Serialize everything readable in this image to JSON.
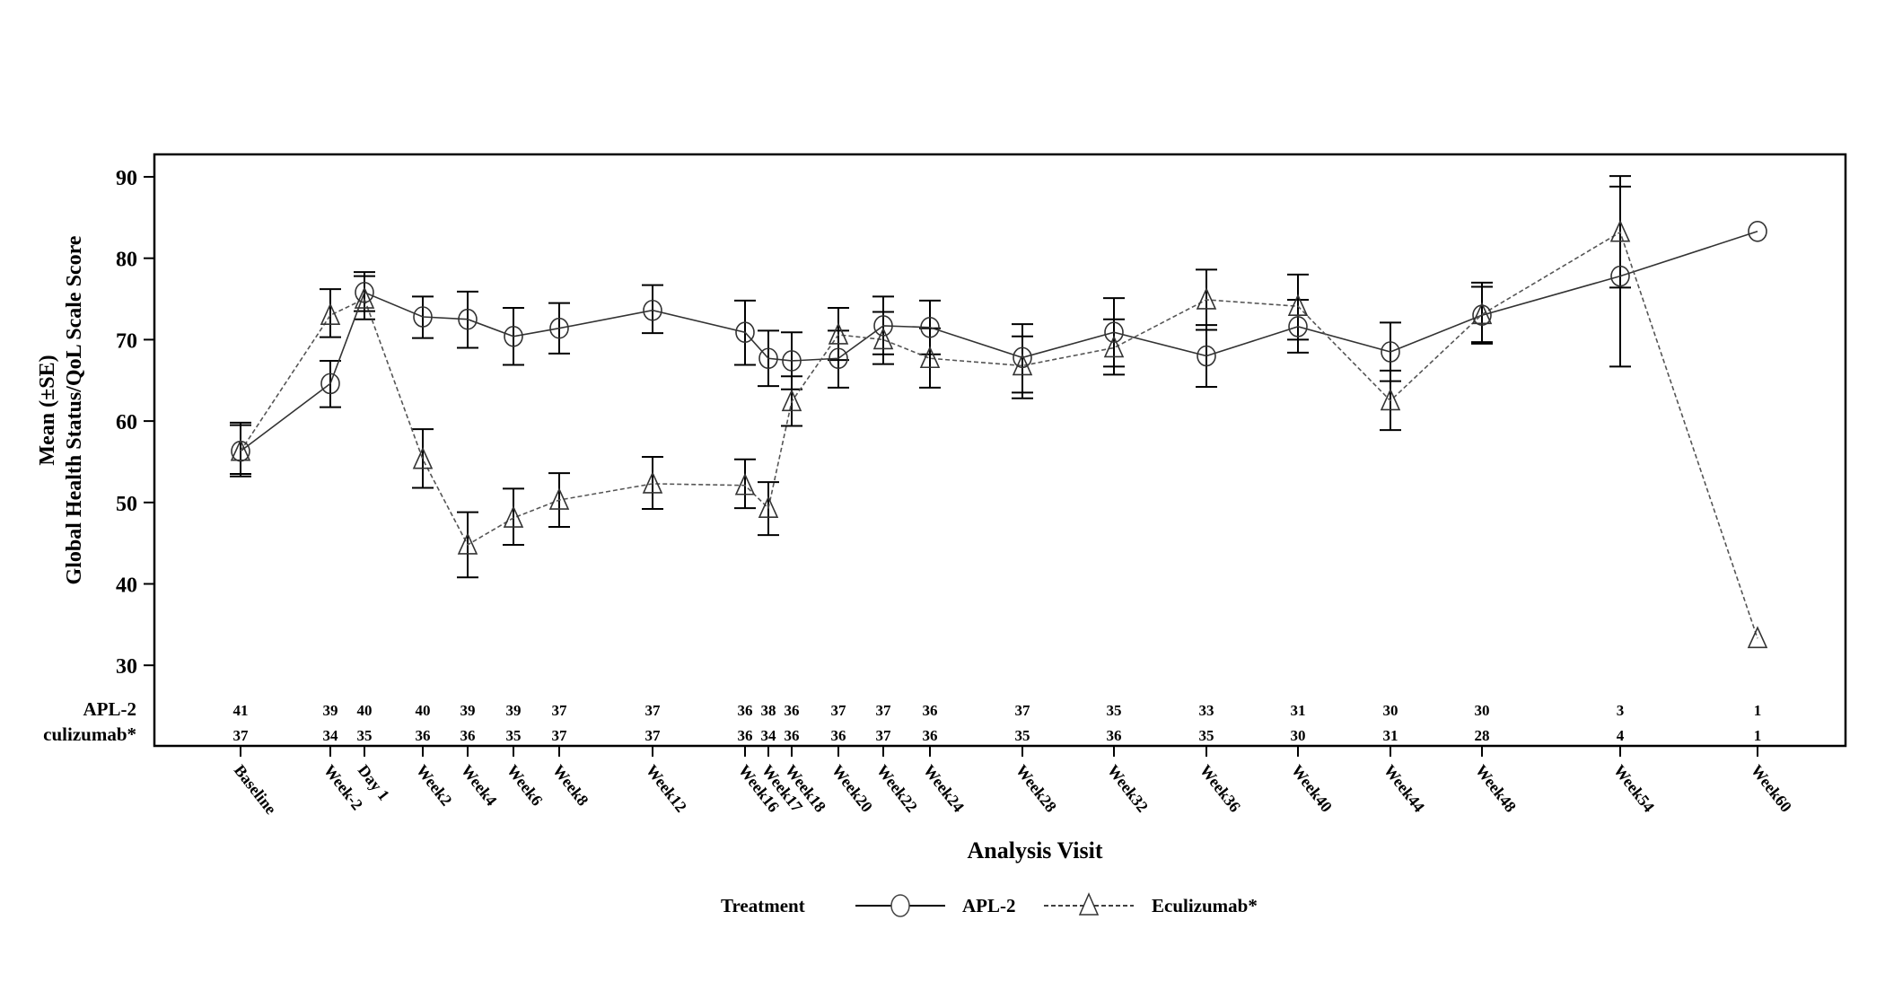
{
  "chart_data": {
    "type": "line",
    "title": "",
    "xlabel": "Analysis Visit",
    "ylabel_line1": "Mean (±SE)",
    "ylabel_line2": "Global Health Status/QoL Scale Score",
    "ylim": [
      30,
      90
    ],
    "yticks": [
      30,
      40,
      50,
      60,
      70,
      80,
      90
    ],
    "grid": false,
    "legend": {
      "title": "Treatment",
      "position": "bottom",
      "entries": [
        {
          "name": "APL-2",
          "marker": "circle",
          "line": "solid"
        },
        {
          "name": "Eculizumab*",
          "marker": "triangle",
          "line": "dashed"
        }
      ]
    },
    "categories": [
      "Baseline",
      "Week-2",
      "Day 1",
      "Week2",
      "Week4",
      "Week6",
      "Week8",
      "Week12",
      "Week16",
      "Week17",
      "Week18",
      "Week20",
      "Week22",
      "Week24",
      "Week28",
      "Week32",
      "Week36",
      "Week40",
      "Week44",
      "Week48",
      "Week54",
      "Week60"
    ],
    "x_positions": [
      -4,
      -2,
      -0.3,
      2,
      4,
      6,
      8,
      12,
      16,
      17,
      18,
      20,
      22,
      24,
      28,
      32,
      36,
      40,
      44,
      48,
      54,
      60
    ],
    "series": [
      {
        "name": "APL-2",
        "values": [
          56.3,
          64.6,
          75.8,
          72.8,
          72.5,
          70.4,
          71.4,
          73.6,
          70.9,
          67.7,
          67.4,
          67.7,
          71.7,
          71.5,
          67.8,
          70.9,
          68.0,
          71.6,
          68.5,
          73.0,
          77.8,
          83.3
        ],
        "se_upper": [
          59.8,
          67.4,
          78.3,
          75.3,
          75.9,
          73.9,
          74.5,
          76.7,
          74.8,
          71.1,
          70.9,
          71.1,
          75.3,
          74.8,
          71.9,
          75.1,
          71.8,
          74.9,
          72.1,
          77.0,
          88.8,
          null
        ],
        "se_lower": [
          53.2,
          61.7,
          73.5,
          70.2,
          69.0,
          66.9,
          68.3,
          70.8,
          66.9,
          64.3,
          63.9,
          64.1,
          68.2,
          68.2,
          63.5,
          66.7,
          64.2,
          68.4,
          64.9,
          69.7,
          66.7,
          null
        ],
        "n": [
          41,
          39,
          40,
          40,
          39,
          39,
          37,
          37,
          36,
          38,
          36,
          37,
          37,
          36,
          37,
          35,
          33,
          31,
          30,
          30,
          3,
          1
        ]
      },
      {
        "name": "Eculizumab*",
        "values": [
          56.3,
          73.0,
          75.0,
          55.3,
          44.8,
          48.1,
          50.3,
          52.3,
          52.1,
          49.3,
          62.4,
          70.6,
          70.0,
          67.7,
          66.8,
          69.0,
          74.9,
          74.1,
          62.5,
          73.1,
          83.2,
          33.3
        ],
        "se_upper": [
          59.5,
          76.2,
          77.8,
          59.0,
          48.8,
          51.7,
          53.6,
          55.6,
          55.3,
          52.5,
          65.5,
          73.9,
          73.4,
          71.4,
          70.4,
          72.5,
          78.6,
          78.0,
          66.2,
          76.5,
          90.1,
          null
        ],
        "se_lower": [
          53.5,
          70.3,
          72.5,
          51.8,
          40.8,
          44.8,
          47.0,
          49.2,
          49.3,
          46.0,
          59.4,
          67.5,
          67.0,
          64.1,
          62.8,
          65.7,
          71.2,
          70.0,
          58.9,
          69.5,
          76.4,
          null
        ],
        "n": [
          37,
          34,
          35,
          36,
          36,
          35,
          37,
          37,
          36,
          34,
          36,
          36,
          37,
          36,
          35,
          36,
          35,
          30,
          31,
          28,
          4,
          1
        ]
      }
    ],
    "n_table_labels": [
      "APL-2",
      "culizumab*"
    ]
  }
}
